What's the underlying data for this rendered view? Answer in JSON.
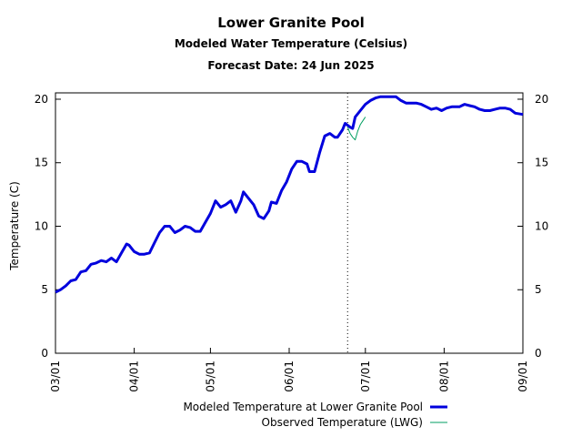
{
  "chart_data": {
    "type": "line",
    "title": "Lower Granite Pool",
    "subtitle": "Modeled Water Temperature (Celsius)",
    "forecast_label": "Forecast Date: 24 Jun 2025",
    "xlabel": "",
    "ylabel": "Temperature (C)",
    "ylim": [
      0,
      20.5
    ],
    "xlim": [
      "2025-03-01",
      "2025-09-01"
    ],
    "x_ticks": [
      "03/01",
      "04/01",
      "05/01",
      "06/01",
      "07/01",
      "08/01",
      "09/01"
    ],
    "y_ticks": [
      0,
      5,
      10,
      15,
      20
    ],
    "forecast_line_x": "2025-06-24",
    "grid": false,
    "legend": "bottom-center",
    "series": [
      {
        "name": "Modeled Temperature at Lower Granite Pool",
        "color": "#0000dd",
        "points": [
          [
            "2025-03-01",
            4.8
          ],
          [
            "2025-03-03",
            5.0
          ],
          [
            "2025-03-05",
            5.3
          ],
          [
            "2025-03-07",
            5.7
          ],
          [
            "2025-03-09",
            5.8
          ],
          [
            "2025-03-11",
            6.4
          ],
          [
            "2025-03-13",
            6.5
          ],
          [
            "2025-03-15",
            7.0
          ],
          [
            "2025-03-17",
            7.1
          ],
          [
            "2025-03-19",
            7.3
          ],
          [
            "2025-03-21",
            7.2
          ],
          [
            "2025-03-23",
            7.5
          ],
          [
            "2025-03-25",
            7.2
          ],
          [
            "2025-03-27",
            7.9
          ],
          [
            "2025-03-29",
            8.6
          ],
          [
            "2025-03-30",
            8.5
          ],
          [
            "2025-04-01",
            8.0
          ],
          [
            "2025-04-03",
            7.8
          ],
          [
            "2025-04-05",
            7.8
          ],
          [
            "2025-04-07",
            7.9
          ],
          [
            "2025-04-09",
            8.7
          ],
          [
            "2025-04-11",
            9.5
          ],
          [
            "2025-04-13",
            10.0
          ],
          [
            "2025-04-15",
            10.0
          ],
          [
            "2025-04-17",
            9.5
          ],
          [
            "2025-04-19",
            9.7
          ],
          [
            "2025-04-21",
            10.0
          ],
          [
            "2025-04-23",
            9.9
          ],
          [
            "2025-04-25",
            9.6
          ],
          [
            "2025-04-27",
            9.6
          ],
          [
            "2025-04-29",
            10.3
          ],
          [
            "2025-05-01",
            11.0
          ],
          [
            "2025-05-03",
            12.0
          ],
          [
            "2025-05-05",
            11.5
          ],
          [
            "2025-05-07",
            11.7
          ],
          [
            "2025-05-09",
            12.0
          ],
          [
            "2025-05-11",
            11.1
          ],
          [
            "2025-05-13",
            12.0
          ],
          [
            "2025-05-14",
            12.7
          ],
          [
            "2025-05-16",
            12.2
          ],
          [
            "2025-05-18",
            11.7
          ],
          [
            "2025-05-20",
            10.8
          ],
          [
            "2025-05-22",
            10.6
          ],
          [
            "2025-05-24",
            11.2
          ],
          [
            "2025-05-25",
            11.9
          ],
          [
            "2025-05-27",
            11.8
          ],
          [
            "2025-05-29",
            12.8
          ],
          [
            "2025-05-31",
            13.5
          ],
          [
            "2025-06-02",
            14.5
          ],
          [
            "2025-06-04",
            15.1
          ],
          [
            "2025-06-06",
            15.1
          ],
          [
            "2025-06-08",
            14.9
          ],
          [
            "2025-06-09",
            14.3
          ],
          [
            "2025-06-11",
            14.3
          ],
          [
            "2025-06-13",
            15.8
          ],
          [
            "2025-06-15",
            17.1
          ],
          [
            "2025-06-17",
            17.3
          ],
          [
            "2025-06-19",
            17.0
          ],
          [
            "2025-06-20",
            17.0
          ],
          [
            "2025-06-22",
            17.6
          ],
          [
            "2025-06-23",
            18.1
          ],
          [
            "2025-06-25",
            17.8
          ],
          [
            "2025-06-26",
            17.7
          ],
          [
            "2025-06-27",
            18.6
          ],
          [
            "2025-06-29",
            19.1
          ],
          [
            "2025-07-01",
            19.6
          ],
          [
            "2025-07-03",
            19.9
          ],
          [
            "2025-07-05",
            20.1
          ],
          [
            "2025-07-07",
            20.2
          ],
          [
            "2025-07-11",
            20.2
          ],
          [
            "2025-07-13",
            20.2
          ],
          [
            "2025-07-15",
            19.9
          ],
          [
            "2025-07-17",
            19.7
          ],
          [
            "2025-07-21",
            19.7
          ],
          [
            "2025-07-23",
            19.6
          ],
          [
            "2025-07-25",
            19.4
          ],
          [
            "2025-07-27",
            19.2
          ],
          [
            "2025-07-29",
            19.3
          ],
          [
            "2025-07-31",
            19.1
          ],
          [
            "2025-08-02",
            19.3
          ],
          [
            "2025-08-04",
            19.4
          ],
          [
            "2025-08-07",
            19.4
          ],
          [
            "2025-08-09",
            19.6
          ],
          [
            "2025-08-11",
            19.5
          ],
          [
            "2025-08-13",
            19.4
          ],
          [
            "2025-08-15",
            19.2
          ],
          [
            "2025-08-17",
            19.1
          ],
          [
            "2025-08-19",
            19.1
          ],
          [
            "2025-08-21",
            19.2
          ],
          [
            "2025-08-23",
            19.3
          ],
          [
            "2025-08-25",
            19.3
          ],
          [
            "2025-08-27",
            19.2
          ],
          [
            "2025-08-29",
            18.9
          ],
          [
            "2025-09-01",
            18.8
          ]
        ]
      },
      {
        "name": "Observed Temperature (LWG)",
        "color": "#009e60",
        "points": [
          [
            "2025-06-24",
            17.8
          ],
          [
            "2025-06-25",
            17.3
          ],
          [
            "2025-06-26",
            17.0
          ],
          [
            "2025-06-27",
            16.8
          ],
          [
            "2025-06-28",
            17.5
          ],
          [
            "2025-06-29",
            18.0
          ],
          [
            "2025-06-30",
            18.3
          ],
          [
            "2025-07-01",
            18.6
          ]
        ]
      }
    ]
  }
}
